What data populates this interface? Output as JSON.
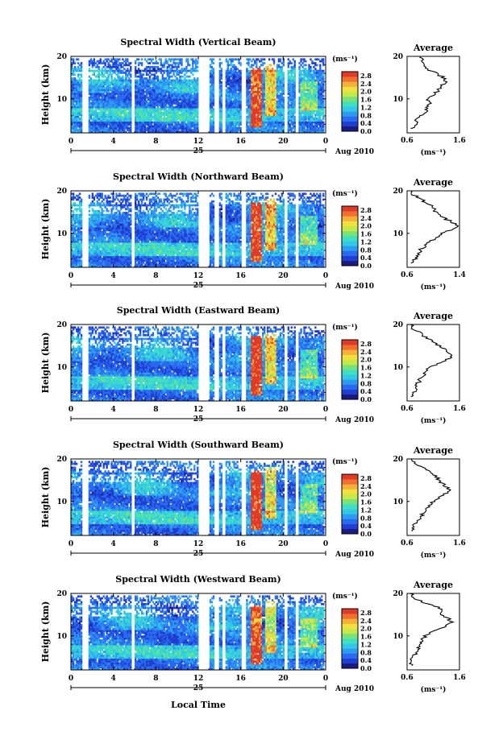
{
  "figure": {
    "xlabel": "Local Time",
    "date_number": "25",
    "date_label": "Aug 2010",
    "y_axis_label": "Height (km)",
    "colorbar_unit": "(ms⁻¹)",
    "colorbar_ticks": [
      "0.0",
      "0.4",
      "0.8",
      "1.2",
      "1.6",
      "2.0",
      "2.4",
      "2.8"
    ],
    "avg_title": "Average",
    "avg_unit": "(ms⁻¹)",
    "colormap": [
      "#1a1a80",
      "#1f3fd0",
      "#2a6af0",
      "#2e9bf0",
      "#33c8e8",
      "#3ee0c0",
      "#7ae27a",
      "#c8e84a",
      "#f0e040",
      "#f4b038",
      "#f07030",
      "#e03a28"
    ]
  },
  "chart_data": [
    {
      "type": "heatmap",
      "title": "Spectral Width (Vertical Beam)",
      "x_ticks": [
        "0",
        "4",
        "8",
        "12",
        "16",
        "20",
        "0"
      ],
      "y_ticks": [
        "20",
        "10"
      ],
      "xlim": [
        0,
        24
      ],
      "ylim": [
        2,
        20
      ],
      "clim": [
        0.0,
        3.0
      ],
      "avg_profile": {
        "xlim": [
          0.6,
          1.6
        ],
        "x_ticks": [
          "0.6",
          "1.6"
        ],
        "height_km": [
          3,
          4,
          5,
          6,
          7,
          8,
          9,
          10,
          11,
          12,
          13,
          14,
          15,
          16,
          17,
          18,
          19,
          20
        ],
        "width_ms": [
          0.7,
          0.78,
          0.74,
          0.85,
          0.95,
          1.0,
          1.05,
          1.0,
          1.1,
          1.2,
          1.25,
          1.35,
          1.3,
          1.15,
          1.0,
          0.95,
          0.9,
          0.85
        ]
      }
    },
    {
      "type": "heatmap",
      "title": "Spectral Width (Northward Beam)",
      "x_ticks": [
        "0",
        "4",
        "8",
        "12",
        "16",
        "20",
        "0"
      ],
      "y_ticks": [
        "20",
        "10"
      ],
      "xlim": [
        0,
        24
      ],
      "ylim": [
        2,
        20
      ],
      "clim": [
        0.0,
        3.0
      ],
      "avg_profile": {
        "xlim": [
          0.6,
          1.4
        ],
        "x_ticks": [
          "0.6",
          "1.4"
        ],
        "height_km": [
          3,
          4,
          5,
          6,
          7,
          8,
          9,
          10,
          11,
          12,
          13,
          14,
          15,
          16,
          17,
          18,
          19,
          20
        ],
        "width_ms": [
          0.68,
          0.72,
          0.75,
          0.8,
          0.88,
          0.95,
          1.05,
          1.15,
          1.3,
          1.38,
          1.25,
          1.1,
          1.05,
          1.0,
          0.92,
          0.8,
          0.7,
          0.66
        ]
      }
    },
    {
      "type": "heatmap",
      "title": "Spectral Width (Eastward Beam)",
      "x_ticks": [
        "0",
        "4",
        "8",
        "12",
        "16",
        "20",
        "0"
      ],
      "y_ticks": [
        "20",
        "10"
      ],
      "xlim": [
        0,
        24
      ],
      "ylim": [
        2,
        20
      ],
      "clim": [
        0.0,
        3.0
      ],
      "avg_profile": {
        "xlim": [
          0.6,
          1.6
        ],
        "x_ticks": [
          "0.6",
          "1.6"
        ],
        "height_km": [
          3,
          4,
          5,
          6,
          7,
          8,
          9,
          10,
          11,
          12,
          13,
          14,
          15,
          16,
          17,
          18,
          19,
          20
        ],
        "width_ms": [
          0.7,
          0.72,
          0.78,
          0.8,
          0.85,
          0.9,
          0.95,
          1.05,
          1.2,
          1.4,
          1.45,
          1.35,
          1.2,
          1.1,
          0.95,
          0.85,
          0.72,
          0.66
        ]
      }
    },
    {
      "type": "heatmap",
      "title": "Spectral Width (Southward Beam)",
      "x_ticks": [
        "0",
        "4",
        "8",
        "12",
        "16",
        "20",
        "0"
      ],
      "y_ticks": [
        "20",
        "10"
      ],
      "xlim": [
        0,
        24
      ],
      "ylim": [
        2,
        20
      ],
      "clim": [
        0.0,
        3.0
      ],
      "avg_profile": {
        "xlim": [
          0.6,
          1.6
        ],
        "x_ticks": [
          "0.6",
          "1.6"
        ],
        "height_km": [
          3,
          4,
          5,
          6,
          7,
          8,
          9,
          10,
          11,
          12,
          13,
          14,
          15,
          16,
          17,
          18,
          19,
          20
        ],
        "width_ms": [
          0.72,
          0.7,
          0.78,
          0.85,
          0.9,
          0.98,
          1.05,
          1.1,
          1.2,
          1.35,
          1.4,
          1.3,
          1.2,
          1.15,
          1.05,
          0.9,
          0.75,
          0.68
        ]
      }
    },
    {
      "type": "heatmap",
      "title": "Spectral Width (Westward Beam)",
      "x_ticks": [
        "0",
        "4",
        "8",
        "12",
        "16",
        "20",
        "0"
      ],
      "y_ticks": [
        "20",
        "10"
      ],
      "xlim": [
        0,
        24
      ],
      "ylim": [
        2,
        20
      ],
      "clim": [
        0.0,
        3.0
      ],
      "avg_profile": {
        "xlim": [
          0.6,
          1.6
        ],
        "x_ticks": [
          "0.6",
          "1.6"
        ],
        "height_km": [
          3,
          4,
          5,
          6,
          7,
          8,
          9,
          10,
          11,
          12,
          13,
          14,
          15,
          16,
          17,
          18,
          19,
          20
        ],
        "width_ms": [
          0.7,
          0.68,
          0.72,
          0.76,
          0.8,
          0.84,
          0.88,
          0.95,
          1.1,
          1.3,
          1.45,
          1.4,
          1.25,
          1.3,
          1.15,
          0.9,
          0.72,
          0.66
        ]
      }
    }
  ]
}
